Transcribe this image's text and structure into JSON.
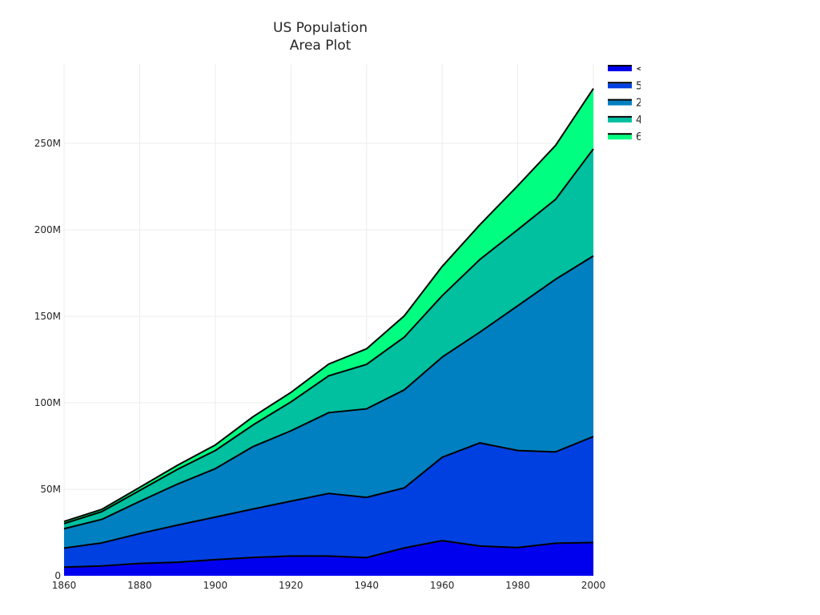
{
  "chart_data": {
    "type": "area",
    "stacked": true,
    "title": "US Population\nArea Plot",
    "xlabel": "",
    "ylabel": "",
    "x": [
      1860,
      1870,
      1880,
      1890,
      1900,
      1910,
      1920,
      1930,
      1940,
      1950,
      1960,
      1970,
      1980,
      1990,
      2000
    ],
    "xlim": [
      1860,
      2000
    ],
    "ylim": [
      0,
      300000000
    ],
    "x_ticks": [
      1860,
      1880,
      1900,
      1920,
      1940,
      1960,
      1980,
      2000
    ],
    "x_tick_labels": [
      "1860",
      "1880",
      "1900",
      "1920",
      "1940",
      "1960",
      "1980",
      "2000"
    ],
    "y_ticks": [
      0,
      50000000,
      100000000,
      150000000,
      200000000,
      250000000
    ],
    "y_tick_labels": [
      "0",
      "50M",
      "100M",
      "150M",
      "200M",
      "250M"
    ],
    "grid": true,
    "legend_position": "top-right",
    "series": [
      {
        "name": "<",
        "color": "#0000ee",
        "values": [
          5000000,
          5700000,
          7100000,
          7800000,
          9300000,
          10600000,
          11400000,
          11400000,
          10500000,
          16100000,
          20300000,
          17200000,
          16300000,
          18800000,
          19200000
        ]
      },
      {
        "name": "5",
        "color": "#0040e0",
        "values": [
          11000000,
          13300000,
          17300000,
          21500000,
          24600000,
          28000000,
          31700000,
          36200000,
          34800000,
          34700000,
          48200000,
          59600000,
          56100000,
          52800000,
          61300000
        ]
      },
      {
        "name": "2",
        "color": "#0080c0",
        "values": [
          11200000,
          13600000,
          18600000,
          23700000,
          28000000,
          36100000,
          40700000,
          46700000,
          51200000,
          56700000,
          57900000,
          64100000,
          83700000,
          99800000,
          104400000
        ]
      },
      {
        "name": "4",
        "color": "#00c0a0",
        "values": [
          3000000,
          4500000,
          6300000,
          8500000,
          10500000,
          12500000,
          16700000,
          21300000,
          25700000,
          30500000,
          35500000,
          42000000,
          44000000,
          46200000,
          61900000
        ]
      },
      {
        "name": "6",
        "color": "#00ff80",
        "values": [
          1200000,
          1300000,
          1800000,
          2400000,
          3200000,
          4800000,
          5500000,
          6800000,
          9000000,
          12300000,
          16900000,
          20100000,
          25400000,
          31200000,
          34900000
        ]
      }
    ]
  }
}
